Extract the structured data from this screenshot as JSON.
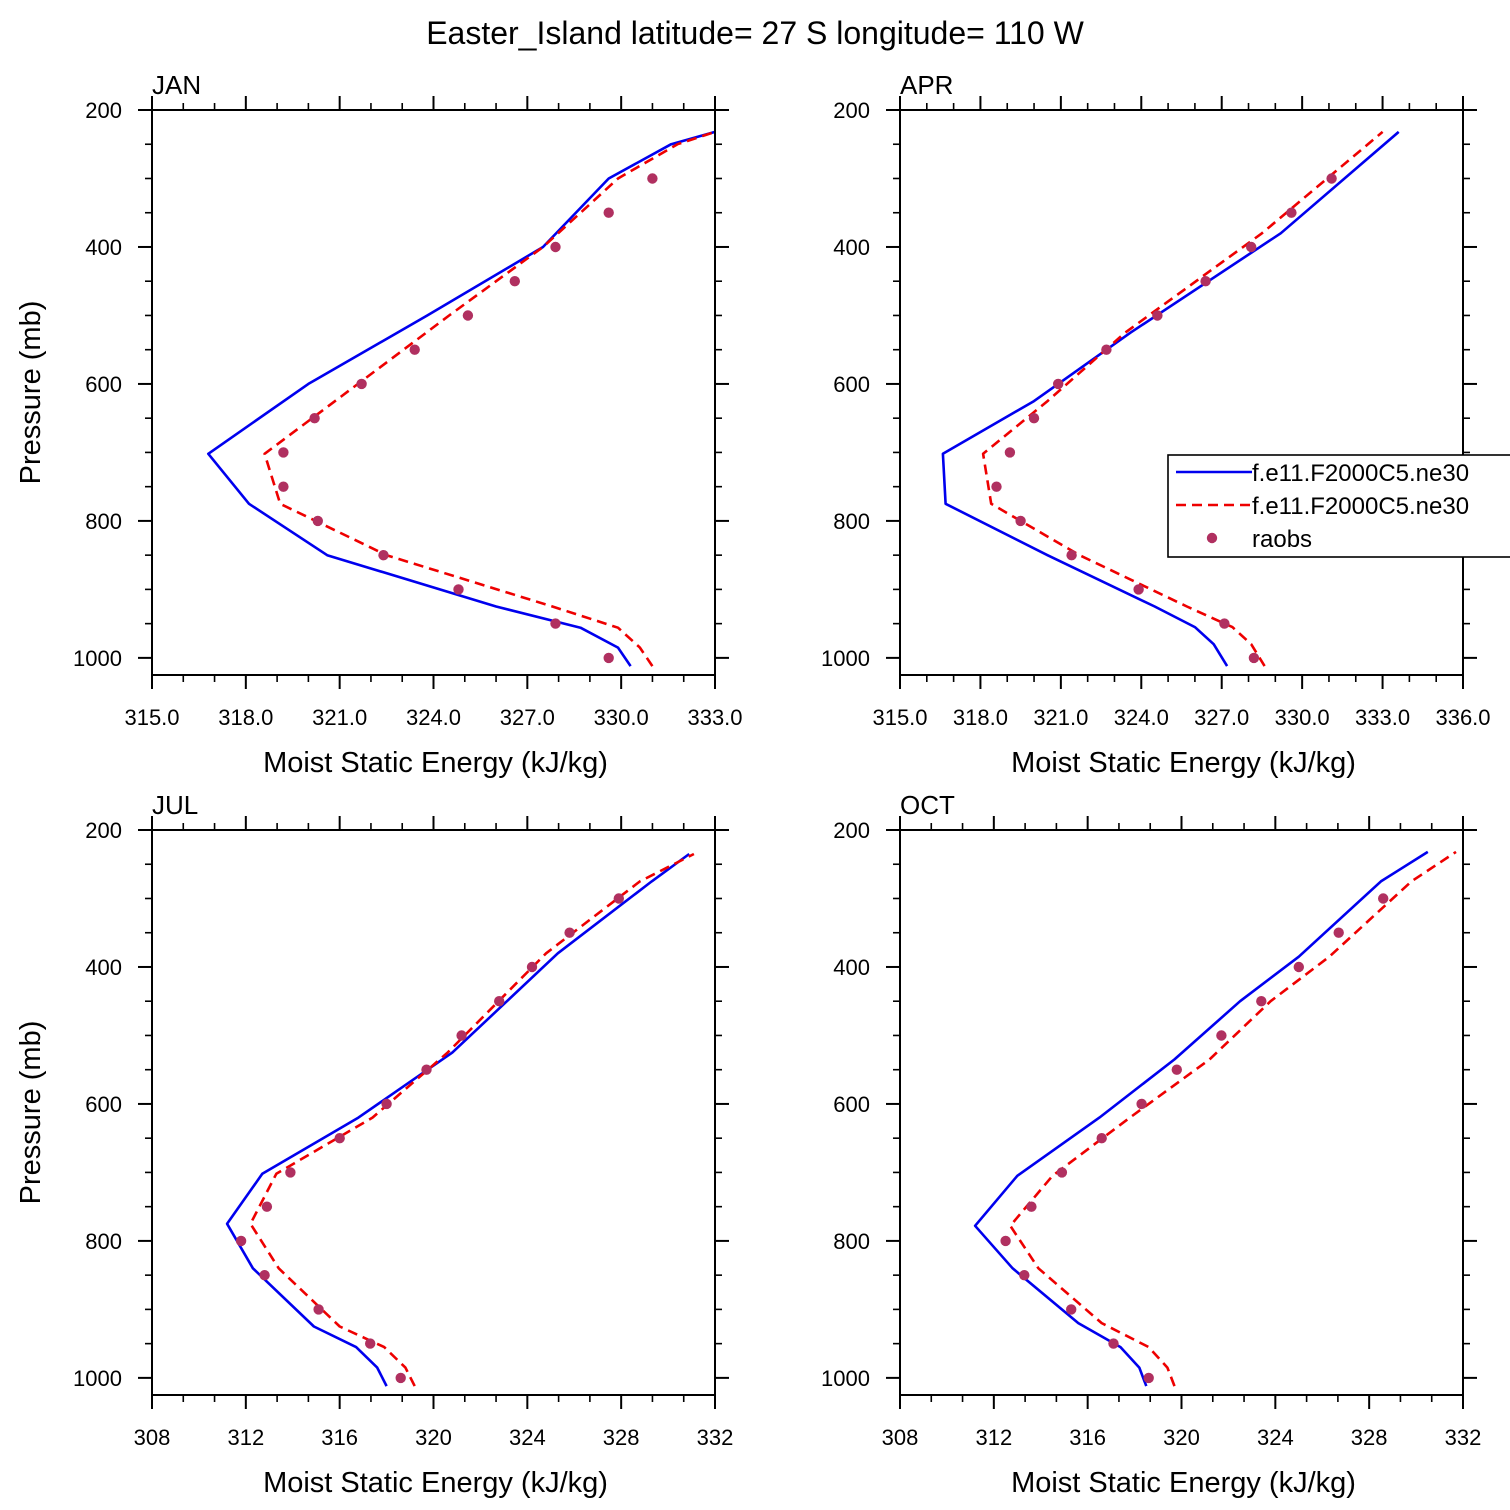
{
  "title": "Easter_Island  latitude= 27 S longitude= 110 W",
  "colors": {
    "model1": "#0000ee",
    "model2": "#ee0000",
    "raobs": "#b03060"
  },
  "legend": [
    {
      "label": "f.e11.F2000C5.ne30",
      "style": "solid-blue"
    },
    {
      "label": "f.e11.F2000C5.ne30",
      "style": "dashed-red"
    },
    {
      "label": "raobs",
      "style": "dot"
    }
  ],
  "chart_data": [
    {
      "type": "line",
      "panel": "JAN",
      "xlabel": "Moist Static Energy (kJ/kg)",
      "ylabel": "Pressure (mb)",
      "xlim": [
        315,
        333
      ],
      "xticks": [
        "315.0",
        "318.0",
        "321.0",
        "324.0",
        "327.0",
        "330.0",
        "333.0"
      ],
      "ylim": [
        200,
        1025
      ],
      "yticks": [
        "200",
        "400",
        "600",
        "800",
        "1000"
      ],
      "series": [
        {
          "name": "f.e11.F2000C5.ne30",
          "style": "solid",
          "x": [
            330.3,
            329.9,
            328.7,
            326.0,
            320.6,
            318.1,
            316.8,
            320.0,
            323.8,
            327.5,
            329.6,
            331.6,
            333.0
          ],
          "y": [
            1012,
            985,
            956,
            925,
            850,
            775,
            702,
            600,
            500,
            400,
            300,
            250,
            232
          ]
        },
        {
          "name": "f.e11.F2000C5.ne30",
          "style": "dashed",
          "x": [
            331.0,
            330.6,
            329.9,
            327.8,
            322.5,
            319.1,
            318.6,
            321.0,
            324.5,
            327.5,
            329.9,
            331.8,
            333.0
          ],
          "y": [
            1012,
            985,
            956,
            925,
            850,
            775,
            702,
            620,
            500,
            400,
            300,
            250,
            232
          ]
        },
        {
          "name": "raobs",
          "style": "dots",
          "x": [
            329.6,
            327.9,
            324.8,
            322.4,
            320.3,
            319.2,
            319.2,
            320.2,
            321.7,
            323.4,
            325.1,
            326.6,
            327.9,
            329.6,
            331.0
          ],
          "y": [
            1000,
            950,
            900,
            850,
            800,
            750,
            700,
            650,
            600,
            550,
            500,
            450,
            400,
            350,
            300
          ]
        }
      ]
    },
    {
      "type": "line",
      "panel": "APR",
      "xlabel": "Moist Static Energy (kJ/kg)",
      "ylabel": "",
      "xlim": [
        315,
        336
      ],
      "xticks": [
        "315.0",
        "318.0",
        "321.0",
        "324.0",
        "327.0",
        "330.0",
        "333.0",
        "336.0"
      ],
      "ylim": [
        200,
        1025
      ],
      "yticks": [
        "200",
        "400",
        "600",
        "800",
        "1000"
      ],
      "series": [
        {
          "name": "f.e11.F2000C5.ne30",
          "style": "solid",
          "x": [
            327.2,
            326.7,
            326.0,
            324.5,
            320.5,
            316.7,
            316.6,
            320.0,
            323.6,
            329.2,
            333.6
          ],
          "y": [
            1012,
            980,
            955,
            925,
            850,
            775,
            702,
            625,
            525,
            380,
            232
          ]
        },
        {
          "name": "f.e11.F2000C5.ne30",
          "style": "dashed",
          "x": [
            328.6,
            328.1,
            327.4,
            325.7,
            321.7,
            318.4,
            318.1,
            320.5,
            323.4,
            328.5,
            333.0
          ],
          "y": [
            1012,
            980,
            955,
            925,
            850,
            775,
            702,
            625,
            525,
            380,
            232
          ]
        },
        {
          "name": "raobs",
          "style": "dots",
          "x": [
            328.2,
            327.1,
            323.9,
            321.4,
            319.5,
            318.6,
            319.1,
            320.0,
            320.9,
            322.7,
            324.6,
            326.4,
            328.1,
            329.6,
            331.1
          ],
          "y": [
            1000,
            950,
            900,
            850,
            800,
            750,
            700,
            650,
            600,
            550,
            500,
            450,
            400,
            350,
            300
          ]
        }
      ]
    },
    {
      "type": "line",
      "panel": "JUL",
      "xlabel": "Moist Static Energy (kJ/kg)",
      "ylabel": "Pressure (mb)",
      "xlim": [
        308,
        332
      ],
      "xticks": [
        "308",
        "312",
        "316",
        "320",
        "324",
        "328",
        "332"
      ],
      "ylim": [
        200,
        1025
      ],
      "yticks": [
        "200",
        "400",
        "600",
        "800",
        "1000"
      ],
      "series": [
        {
          "name": "f.e11.F2000C5.ne30",
          "style": "solid",
          "x": [
            318.0,
            317.6,
            316.7,
            314.9,
            312.3,
            311.2,
            312.7,
            316.8,
            320.8,
            325.3,
            329.3,
            330.9
          ],
          "y": [
            1012,
            985,
            955,
            925,
            840,
            775,
            702,
            620,
            525,
            380,
            275,
            235
          ]
        },
        {
          "name": "f.e11.F2000C5.ne30",
          "style": "dashed",
          "x": [
            319.2,
            318.8,
            317.9,
            316.0,
            313.4,
            312.2,
            313.3,
            317.4,
            320.6,
            324.8,
            328.8,
            331.1
          ],
          "y": [
            1012,
            985,
            955,
            925,
            840,
            775,
            702,
            620,
            525,
            380,
            275,
            235
          ]
        },
        {
          "name": "raobs",
          "style": "dots",
          "x": [
            318.6,
            317.3,
            315.1,
            312.8,
            311.8,
            312.9,
            313.9,
            316.0,
            318.0,
            319.7,
            321.2,
            322.8,
            324.2,
            325.8,
            327.9
          ],
          "y": [
            1000,
            950,
            900,
            850,
            800,
            750,
            700,
            650,
            600,
            550,
            500,
            450,
            400,
            350,
            300
          ]
        }
      ]
    },
    {
      "type": "line",
      "panel": "OCT",
      "xlabel": "Moist Static Energy (kJ/kg)",
      "ylabel": "",
      "xlim": [
        308,
        332
      ],
      "xticks": [
        "308",
        "312",
        "316",
        "320",
        "324",
        "328",
        "332"
      ],
      "ylim": [
        200,
        1025
      ],
      "yticks": [
        "200",
        "400",
        "600",
        "800",
        "1000"
      ],
      "series": [
        {
          "name": "f.e11.F2000C5.ne30",
          "style": "solid",
          "x": [
            318.5,
            318.2,
            317.4,
            315.6,
            312.8,
            311.2,
            313.0,
            316.5,
            319.7,
            322.5,
            325.0,
            328.5,
            330.5
          ],
          "y": [
            1012,
            985,
            955,
            920,
            840,
            778,
            705,
            620,
            535,
            450,
            385,
            275,
            232
          ]
        },
        {
          "name": "f.e11.F2000C5.ne30",
          "style": "dashed",
          "x": [
            319.7,
            319.4,
            318.6,
            316.6,
            313.9,
            312.7,
            314.5,
            317.8,
            321.2,
            323.8,
            326.3,
            329.8,
            331.7
          ],
          "y": [
            1012,
            985,
            955,
            920,
            840,
            778,
            705,
            620,
            535,
            450,
            385,
            275,
            232
          ]
        },
        {
          "name": "raobs",
          "style": "dots",
          "x": [
            318.6,
            317.1,
            315.3,
            313.3,
            312.5,
            313.6,
            314.9,
            316.6,
            318.3,
            319.8,
            321.7,
            323.4,
            325.0,
            326.7,
            328.6
          ],
          "y": [
            1000,
            950,
            900,
            850,
            800,
            750,
            700,
            650,
            600,
            550,
            500,
            450,
            400,
            350,
            300
          ]
        }
      ]
    }
  ]
}
